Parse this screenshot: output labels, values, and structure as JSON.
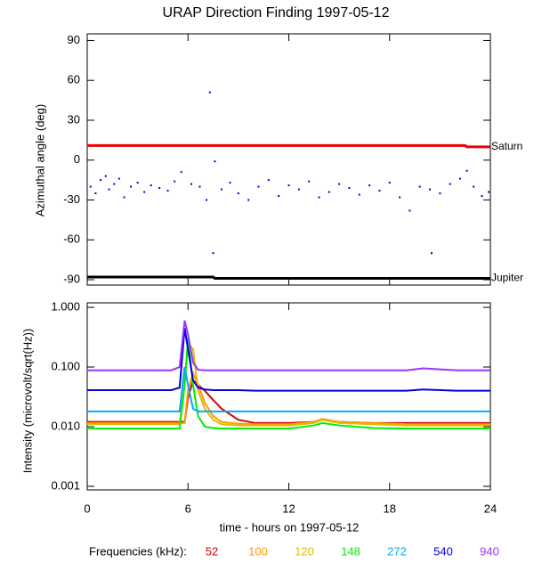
{
  "chart_data": [
    {
      "type": "combo",
      "title": "URAP Direction Finding  1997-05-12",
      "ylabel": "Azimuthal angle (deg)",
      "xlim": [
        0,
        24
      ],
      "xticks": [
        0,
        6,
        12,
        18,
        24
      ],
      "show_xtick_labels": false,
      "ylim": [
        -94,
        95
      ],
      "yticks": [
        90,
        60,
        30,
        0,
        -30,
        -60,
        -90
      ],
      "series": [
        {
          "name": "Saturn",
          "type": "line",
          "color": "#ee0000",
          "x": [
            0,
            22.5,
            22.6,
            24
          ],
          "values": [
            11,
            11,
            10,
            10
          ]
        },
        {
          "name": "Jupiter",
          "type": "line",
          "color": "#000000",
          "x": [
            0,
            7.5,
            7.6,
            24
          ],
          "values": [
            -88,
            -88,
            -89,
            -89
          ]
        },
        {
          "type": "scatter",
          "color": "#0000cc",
          "x": [
            0.2,
            0.5,
            0.8,
            1.1,
            1.3,
            1.6,
            1.9,
            2.2,
            2.6,
            3.0,
            3.4,
            3.8,
            4.3,
            4.8,
            5.2,
            5.6,
            6.2,
            6.7,
            7.1,
            7.3,
            7.5,
            7.6,
            8.0,
            8.5,
            9.0,
            9.6,
            10.2,
            10.8,
            11.4,
            12.0,
            12.6,
            13.2,
            13.8,
            14.4,
            15.0,
            15.6,
            16.2,
            16.8,
            17.4,
            18.0,
            18.6,
            19.2,
            19.8,
            20.4,
            20.5,
            21.0,
            21.6,
            22.2,
            22.6,
            23.0,
            23.5,
            23.9
          ],
          "values": [
            -20,
            -25,
            -15,
            -12,
            -22,
            -18,
            -14,
            -28,
            -20,
            -17,
            -24,
            -19,
            -21,
            -23,
            -16,
            -9,
            -18,
            -20,
            -30,
            51,
            -70,
            -1,
            -22,
            -17,
            -25,
            -30,
            -20,
            -15,
            -27,
            -19,
            -22,
            -16,
            -28,
            -24,
            -18,
            -21,
            -26,
            -19,
            -23,
            -17,
            -28,
            -38,
            -20,
            -22,
            -70,
            -25,
            -18,
            -14,
            -8,
            -20,
            -27,
            -24
          ]
        }
      ]
    },
    {
      "type": "line",
      "yscale": "log",
      "ylabel": "Intensity (microvolt/sqrt(Hz))",
      "xlabel": "time - hours on 1997-05-12",
      "legend_title": "Frequencies (kHz):",
      "legend": "bottom",
      "xlim": [
        0,
        24
      ],
      "xticks": [
        0,
        6,
        12,
        18,
        24
      ],
      "show_xtick_labels": true,
      "ylim": [
        0.00087,
        1.19
      ],
      "yticks": [
        {
          "value": 1,
          "label": "1.000"
        },
        {
          "value": 0.1,
          "label": "0.100"
        },
        {
          "value": 0.01,
          "label": "0.010"
        },
        {
          "value": 0.001,
          "label": "0.001"
        }
      ],
      "x": [
        0,
        1,
        2,
        3,
        4,
        5,
        5.5,
        5.8,
        6,
        6.3,
        6.6,
        7,
        7.5,
        8,
        9,
        10,
        12,
        13.5,
        14,
        15,
        17,
        19,
        20,
        22,
        24
      ],
      "series": [
        {
          "name": "52",
          "color": "#dd0000",
          "values": [
            0.012,
            0.012,
            0.012,
            0.012,
            0.012,
            0.012,
            0.012,
            0.012,
            0.03,
            0.06,
            0.05,
            0.04,
            0.028,
            0.02,
            0.013,
            0.0115,
            0.0115,
            0.012,
            0.013,
            0.012,
            0.0115,
            0.0115,
            0.0115,
            0.0115,
            0.0115
          ]
        },
        {
          "name": "100",
          "color": "#ff9900",
          "values": [
            0.0115,
            0.0115,
            0.0115,
            0.0115,
            0.0115,
            0.0115,
            0.0115,
            0.0115,
            0.04,
            0.08,
            0.05,
            0.025,
            0.015,
            0.012,
            0.0112,
            0.011,
            0.011,
            0.012,
            0.0135,
            0.012,
            0.0115,
            0.011,
            0.011,
            0.011,
            0.011
          ]
        },
        {
          "name": "120",
          "color": "#ddbb00",
          "values": [
            0.011,
            0.011,
            0.011,
            0.011,
            0.011,
            0.011,
            0.011,
            0.05,
            0.25,
            0.2,
            0.04,
            0.02,
            0.013,
            0.011,
            0.0105,
            0.0105,
            0.0105,
            0.0115,
            0.013,
            0.0115,
            0.011,
            0.0105,
            0.0105,
            0.0105,
            0.0105
          ]
        },
        {
          "name": "148",
          "color": "#00ee00",
          "values": [
            0.0093,
            0.0093,
            0.0093,
            0.0093,
            0.0093,
            0.0093,
            0.0093,
            0.05,
            0.3,
            0.05,
            0.015,
            0.01,
            0.0095,
            0.0093,
            0.0093,
            0.0093,
            0.0093,
            0.0105,
            0.0115,
            0.0105,
            0.0095,
            0.0093,
            0.0093,
            0.0093,
            0.0093
          ]
        },
        {
          "name": "272",
          "color": "#00aaff",
          "values": [
            0.018,
            0.018,
            0.018,
            0.018,
            0.018,
            0.018,
            0.018,
            0.1,
            0.05,
            0.02,
            0.018,
            0.018,
            0.018,
            0.018,
            0.018,
            0.018,
            0.018,
            0.018,
            0.018,
            0.018,
            0.018,
            0.018,
            0.018,
            0.018,
            0.018
          ]
        },
        {
          "name": "540",
          "color": "#0000dd",
          "values": [
            0.041,
            0.041,
            0.041,
            0.041,
            0.041,
            0.041,
            0.045,
            0.45,
            0.2,
            0.06,
            0.045,
            0.042,
            0.041,
            0.041,
            0.041,
            0.04,
            0.04,
            0.04,
            0.04,
            0.04,
            0.04,
            0.04,
            0.042,
            0.04,
            0.04
          ]
        },
        {
          "name": "940",
          "color": "#9933ff",
          "values": [
            0.088,
            0.088,
            0.088,
            0.088,
            0.088,
            0.088,
            0.1,
            0.6,
            0.35,
            0.12,
            0.09,
            0.088,
            0.088,
            0.088,
            0.088,
            0.088,
            0.088,
            0.088,
            0.088,
            0.088,
            0.088,
            0.088,
            0.095,
            0.088,
            0.088
          ]
        }
      ]
    }
  ]
}
